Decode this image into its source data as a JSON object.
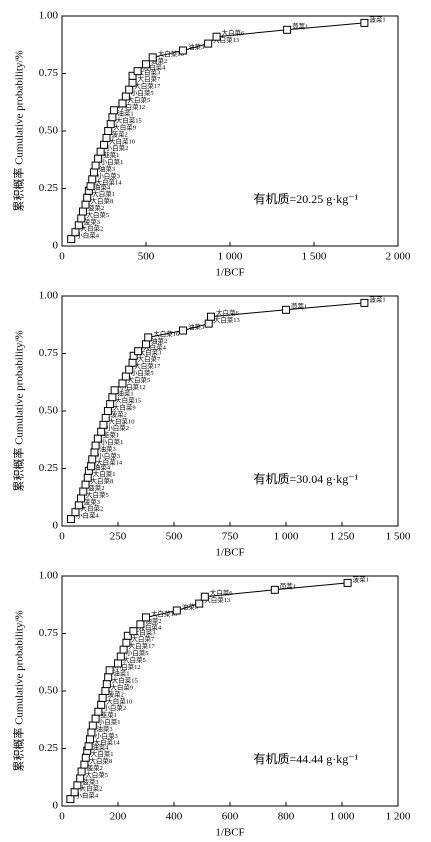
{
  "chart_data": [
    {
      "type": "scatter",
      "x_label": "1/BCF",
      "y_label": "累积概率 Cumulative probability/%",
      "annotation": "有机质=20.25 g·kg⁻¹",
      "color": "#000000",
      "xlim": [
        0,
        2000
      ],
      "xticks": [
        0,
        500,
        {
          "value": 1000,
          "label": "1 000"
        },
        {
          "value": 1500,
          "label": "1 500"
        },
        {
          "value": 2000,
          "label": "2 000"
        }
      ],
      "ylim": [
        0,
        1
      ],
      "yticks": [
        0,
        0.25,
        {
          "value": 0.5,
          "label": "0.50"
        },
        0.75,
        {
          "value": 1,
          "label": "1.00"
        }
      ],
      "x": [
        55,
        80,
        100,
        115,
        125,
        140,
        150,
        160,
        170,
        180,
        190,
        200,
        215,
        230,
        250,
        265,
        275,
        290,
        300,
        310,
        360,
        380,
        400,
        420,
        420,
        450,
        500,
        540,
        720,
        870,
        920,
        1340,
        1800
      ],
      "values": [
        0.03,
        0.06,
        0.09,
        0.12,
        0.15,
        0.18,
        0.21,
        0.24,
        0.26,
        0.29,
        0.32,
        0.35,
        0.38,
        0.41,
        0.44,
        0.47,
        0.5,
        0.53,
        0.56,
        0.59,
        0.62,
        0.65,
        0.68,
        0.71,
        0.74,
        0.76,
        0.79,
        0.82,
        0.85,
        0.88,
        0.91,
        0.94,
        0.97
      ],
      "point_labels": [
        "小白菜4",
        "大白菜2",
        "菠菜3",
        "大白菜5",
        "菠菜2",
        "大白菜8",
        "大白菜1",
        "油菜4",
        "大白菜14",
        "小白菜3",
        "油菜3",
        "小白菜1",
        "韭菜1",
        "小白菜2",
        "大白菜10",
        "菠菜2",
        "大白菜9",
        "大白菜15",
        "油菜1",
        "小白菜12",
        "大白菜5",
        "小白菜5",
        "大白菜17",
        "大白菜7",
        "大白菜3",
        "大白菜4",
        "油菜2",
        "大白菜16",
        "油菜3",
        "大白菜13",
        "大白菜6",
        "茼蒿1",
        "菠菜1"
      ]
    },
    {
      "type": "scatter",
      "x_label": "1/BCF",
      "y_label": "累积概率 Cumulative probability/%",
      "annotation": "有机质=30.04 g·kg⁻¹",
      "color": "#000000",
      "xlim": [
        0,
        1500
      ],
      "xticks": [
        0,
        250,
        500,
        750,
        {
          "value": 1000,
          "label": "1 000"
        },
        {
          "value": 1250,
          "label": "1 250"
        },
        {
          "value": 1500,
          "label": "1 500"
        }
      ],
      "ylim": [
        0,
        1
      ],
      "yticks": [
        0,
        0.25,
        {
          "value": 0.5,
          "label": "0.50"
        },
        0.75,
        {
          "value": 1,
          "label": "1.00"
        }
      ],
      "x": [
        40,
        60,
        75,
        85,
        95,
        105,
        115,
        120,
        130,
        135,
        145,
        150,
        160,
        175,
        185,
        195,
        205,
        215,
        225,
        235,
        270,
        285,
        300,
        315,
        320,
        340,
        375,
        385,
        540,
        655,
        665,
        1000,
        1350
      ],
      "values": [
        0.03,
        0.06,
        0.09,
        0.12,
        0.15,
        0.18,
        0.21,
        0.24,
        0.26,
        0.29,
        0.32,
        0.35,
        0.38,
        0.41,
        0.44,
        0.47,
        0.5,
        0.53,
        0.56,
        0.59,
        0.62,
        0.65,
        0.68,
        0.71,
        0.74,
        0.76,
        0.79,
        0.82,
        0.85,
        0.88,
        0.91,
        0.94,
        0.97
      ],
      "point_labels": [
        "小白菜4",
        "大白菜2",
        "菠菜3",
        "大白菜5",
        "菠菜2",
        "大白菜8",
        "大白菜1",
        "油菜4",
        "大白菜14",
        "小白菜3",
        "油菜3",
        "小白菜1",
        "韭菜1",
        "小白菜2",
        "大白菜10",
        "菠菜2",
        "大白菜9",
        "大白菜15",
        "油菜1",
        "小白菜12",
        "大白菜5",
        "小白菜5",
        "大白菜17",
        "大白菜7",
        "大白菜3",
        "大白菜4",
        "油菜2",
        "大白菜16",
        "油菜3",
        "大白菜13",
        "大白菜6",
        "茼蒿1",
        "菠菜1"
      ]
    },
    {
      "type": "scatter",
      "x_label": "1/BCF",
      "y_label": "累积概率 Cumulative probability/%",
      "annotation": "有机质=44.44 g·kg⁻¹",
      "color": "#000000",
      "xlim": [
        0,
        1200
      ],
      "xticks": [
        0,
        200,
        400,
        600,
        800,
        {
          "value": 1000,
          "label": "1 000"
        },
        {
          "value": 1200,
          "label": "1 200"
        }
      ],
      "ylim": [
        0,
        1
      ],
      "yticks": [
        0,
        0.25,
        {
          "value": 0.5,
          "label": "0.50"
        },
        0.75,
        {
          "value": 1,
          "label": "1.00"
        }
      ],
      "x": [
        30,
        45,
        55,
        65,
        70,
        80,
        85,
        90,
        95,
        100,
        105,
        110,
        120,
        130,
        140,
        145,
        155,
        160,
        165,
        170,
        200,
        210,
        220,
        230,
        235,
        255,
        280,
        300,
        410,
        490,
        510,
        760,
        1020
      ],
      "values": [
        0.03,
        0.06,
        0.09,
        0.12,
        0.15,
        0.18,
        0.21,
        0.24,
        0.26,
        0.29,
        0.32,
        0.35,
        0.38,
        0.41,
        0.44,
        0.47,
        0.5,
        0.53,
        0.56,
        0.59,
        0.62,
        0.65,
        0.68,
        0.71,
        0.74,
        0.76,
        0.79,
        0.82,
        0.85,
        0.88,
        0.91,
        0.94,
        0.97
      ],
      "point_labels": [
        "小白菜4",
        "大白菜2",
        "菠菜3",
        "大白菜5",
        "菠菜2",
        "大白菜8",
        "大白菜1",
        "油菜4",
        "大白菜14",
        "小白菜3",
        "油菜3",
        "小白菜1",
        "韭菜1",
        "小白菜2",
        "大白菜10",
        "菠菜2",
        "大白菜9",
        "大白菜15",
        "油菜1",
        "小白菜12",
        "大白菜5",
        "小白菜5",
        "大白菜17",
        "大白菜7",
        "大白菜3",
        "大白菜4",
        "油菜2",
        "大白菜16",
        "油菜3",
        "大白菜13",
        "大白菜6",
        "茼蒿1",
        "菠菜1"
      ]
    }
  ]
}
